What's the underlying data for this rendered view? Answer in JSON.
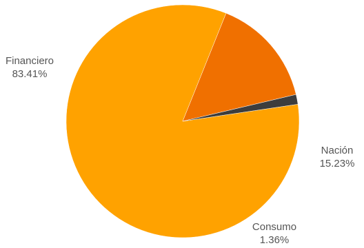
{
  "chart_data": {
    "type": "pie",
    "slices": [
      {
        "label": "Financiero",
        "value": 83.41,
        "value_label": "83.41%",
        "color": "#ffa200"
      },
      {
        "label": "Nación",
        "value": 15.23,
        "value_label": "15.23%",
        "color": "#f07000"
      },
      {
        "label": "Consumo",
        "value": 1.36,
        "value_label": "1.36%",
        "color": "#3d3d3d"
      }
    ],
    "start_angle_deg": 81.6,
    "direction": "clockwise",
    "legend": "none"
  }
}
